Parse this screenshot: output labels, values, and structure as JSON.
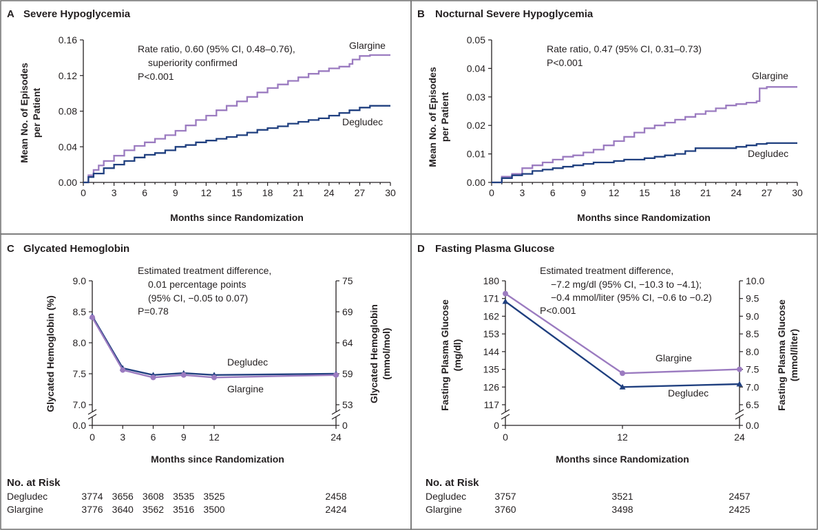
{
  "colors": {
    "degludec": "#1f3f7f",
    "glargine": "#9b7bc0",
    "frame": "#6d6d6d",
    "text": "#231f20"
  },
  "chart_data": [
    {
      "id": "A",
      "type": "line",
      "panel_letter": "A",
      "title": "Severe Hypoglycemia",
      "xlabel": "Months since Randomization",
      "ylabel_lines": [
        "Mean No. of Episodes",
        "per Patient"
      ],
      "xlim": [
        0,
        30
      ],
      "ylim": [
        0,
        0.16
      ],
      "xticks": [
        "0",
        "3",
        "6",
        "9",
        "12",
        "15",
        "18",
        "21",
        "24",
        "27",
        "30"
      ],
      "yticks": [
        "0.00",
        "0.04",
        "0.08",
        "0.12",
        "0.16"
      ],
      "annotation": [
        "Rate ratio, 0.60 (95% CI, 0.48–0.76),",
        "superiority confirmed",
        "P<0.001"
      ],
      "series": [
        {
          "name": "Glargine",
          "color_key": "glargine",
          "step": true,
          "x": [
            0,
            0.5,
            1,
            1.5,
            2,
            3,
            4,
            5,
            6,
            7,
            8,
            9,
            10,
            11,
            12,
            13,
            14,
            15,
            16,
            17,
            18,
            19,
            20,
            21,
            22,
            23,
            24,
            25,
            26,
            26.3,
            27,
            28,
            29,
            30
          ],
          "y": [
            0,
            0.008,
            0.014,
            0.019,
            0.024,
            0.03,
            0.036,
            0.041,
            0.045,
            0.049,
            0.053,
            0.058,
            0.064,
            0.07,
            0.075,
            0.081,
            0.086,
            0.091,
            0.096,
            0.101,
            0.106,
            0.11,
            0.114,
            0.118,
            0.122,
            0.125,
            0.128,
            0.13,
            0.133,
            0.138,
            0.142,
            0.143,
            0.143,
            0.143
          ]
        },
        {
          "name": "Degludec",
          "color_key": "degludec",
          "step": true,
          "x": [
            0,
            0.5,
            1,
            2,
            3,
            4,
            5,
            6,
            7,
            8,
            9,
            10,
            11,
            12,
            13,
            14,
            15,
            16,
            17,
            18,
            19,
            20,
            21,
            22,
            23,
            24,
            25,
            26,
            27,
            28,
            29,
            30
          ],
          "y": [
            0,
            0.006,
            0.01,
            0.016,
            0.02,
            0.024,
            0.028,
            0.031,
            0.033,
            0.036,
            0.04,
            0.042,
            0.045,
            0.047,
            0.049,
            0.051,
            0.053,
            0.056,
            0.059,
            0.061,
            0.063,
            0.066,
            0.068,
            0.07,
            0.072,
            0.075,
            0.078,
            0.081,
            0.084,
            0.086,
            0.086,
            0.086
          ]
        }
      ]
    },
    {
      "id": "B",
      "type": "line",
      "panel_letter": "B",
      "title": "Nocturnal Severe Hypoglycemia",
      "xlabel": "Months since Randomization",
      "ylabel_lines": [
        "Mean No. of Episodes",
        "per Patient"
      ],
      "xlim": [
        0,
        30
      ],
      "ylim": [
        0,
        0.05
      ],
      "xticks": [
        "0",
        "3",
        "6",
        "9",
        "12",
        "15",
        "18",
        "21",
        "24",
        "27",
        "30"
      ],
      "yticks": [
        "0.00",
        "0.01",
        "0.02",
        "0.03",
        "0.04",
        "0.05"
      ],
      "annotation": [
        "Rate ratio, 0.47 (95% CI, 0.31–0.73)",
        "P<0.001"
      ],
      "series": [
        {
          "name": "Glargine",
          "color_key": "glargine",
          "step": true,
          "x": [
            0,
            1,
            2,
            3,
            4,
            5,
            6,
            7,
            8,
            9,
            10,
            11,
            12,
            13,
            14,
            15,
            16,
            17,
            18,
            19,
            20,
            21,
            22,
            23,
            24,
            25,
            26,
            26.3,
            27,
            28,
            29,
            30
          ],
          "y": [
            0,
            0.002,
            0.003,
            0.005,
            0.006,
            0.007,
            0.008,
            0.009,
            0.0095,
            0.0105,
            0.0115,
            0.013,
            0.0145,
            0.016,
            0.0175,
            0.019,
            0.02,
            0.021,
            0.022,
            0.023,
            0.024,
            0.025,
            0.026,
            0.027,
            0.0275,
            0.028,
            0.0285,
            0.033,
            0.0335,
            0.0335,
            0.0335,
            0.0335
          ]
        },
        {
          "name": "Degludec",
          "color_key": "degludec",
          "step": true,
          "x": [
            0,
            1,
            2,
            3,
            4,
            5,
            6,
            7,
            8,
            9,
            10,
            11,
            12,
            13,
            14,
            15,
            16,
            17,
            18,
            19,
            20,
            21,
            22,
            23,
            24,
            25,
            26,
            27,
            28,
            29,
            30
          ],
          "y": [
            0,
            0.0015,
            0.0025,
            0.003,
            0.004,
            0.0045,
            0.005,
            0.0055,
            0.006,
            0.0065,
            0.007,
            0.007,
            0.0075,
            0.008,
            0.008,
            0.0085,
            0.009,
            0.0095,
            0.01,
            0.011,
            0.012,
            0.012,
            0.012,
            0.012,
            0.0125,
            0.013,
            0.0135,
            0.0138,
            0.0138,
            0.0138,
            0.0138
          ]
        }
      ]
    },
    {
      "id": "C",
      "type": "line",
      "panel_letter": "C",
      "title": "Glycated Hemoglobin",
      "xlabel": "Months since Randomization",
      "ylabel_left": "Glycated Hemoglobin (%)",
      "ylabel_right_lines": [
        "Glycated Hemoglobin",
        "(mmol/mol)"
      ],
      "xlim": [
        0,
        24
      ],
      "ylim": [
        7.0,
        9.0
      ],
      "axis_break": true,
      "x_tick_values": [
        0,
        3,
        6,
        9,
        12,
        24
      ],
      "xticks": [
        "0",
        "3",
        "6",
        "9",
        "12",
        "24"
      ],
      "y_tick_values": [
        7.0,
        7.5,
        8.0,
        8.5,
        9.0
      ],
      "yticks": [
        "7.0",
        "7.5",
        "8.0",
        "8.5",
        "9.0"
      ],
      "y_zero_label": "0.0",
      "yticks_right": [
        "53",
        "59",
        "64",
        "69",
        "75"
      ],
      "y_zero_label_right": "0",
      "annotation": [
        "Estimated treatment difference,",
        "0.01 percentage points",
        "(95% CI, −0.05 to 0.07)",
        "P=0.78"
      ],
      "series": [
        {
          "name": "Degludec",
          "color_key": "degludec",
          "marker": "triangle",
          "x": [
            0,
            3,
            6,
            9,
            12,
            24
          ],
          "y": [
            8.43,
            7.59,
            7.48,
            7.51,
            7.48,
            7.5
          ]
        },
        {
          "name": "Glargine",
          "color_key": "glargine",
          "marker": "circle",
          "x": [
            0,
            3,
            6,
            9,
            12,
            24
          ],
          "y": [
            8.41,
            7.56,
            7.44,
            7.48,
            7.44,
            7.48
          ]
        }
      ],
      "risk_table": {
        "title": "No. at Risk",
        "rows": [
          {
            "label": "Degludec",
            "values": [
              "3774",
              "3656",
              "3608",
              "3535",
              "3525",
              "2458"
            ]
          },
          {
            "label": "Glargine",
            "values": [
              "3776",
              "3640",
              "3562",
              "3516",
              "3500",
              "2424"
            ]
          }
        ]
      }
    },
    {
      "id": "D",
      "type": "line",
      "panel_letter": "D",
      "title": "Fasting Plasma Glucose",
      "xlabel": "Months since Randomization",
      "ylabel_left_lines": [
        "Fasting Plasma Glucose",
        "(mg/dl)"
      ],
      "ylabel_right_lines": [
        "Fasting Plasma Glucose",
        "(mmol/liter)"
      ],
      "xlim": [
        0,
        24
      ],
      "ylim": [
        117,
        180
      ],
      "axis_break": true,
      "x_tick_values": [
        0,
        12,
        24
      ],
      "xticks": [
        "0",
        "12",
        "24"
      ],
      "y_tick_values": [
        117,
        126,
        135,
        144,
        153,
        162,
        171,
        180
      ],
      "yticks": [
        "117",
        "126",
        "135",
        "144",
        "153",
        "162",
        "171",
        "180"
      ],
      "y_zero_label": "0",
      "yticks_right": [
        "6.5",
        "7.0",
        "7.5",
        "8.0",
        "8.5",
        "9.0",
        "9.5",
        "10.0"
      ],
      "y_zero_label_right": "0.0",
      "annotation": [
        "Estimated treatment difference,",
        "−7.2 mg/dl (95% CI, −10.3 to −4.1);",
        "−0.4 mmol/liter (95% CI, −0.6 to −0.2)",
        "P<0.001"
      ],
      "series": [
        {
          "name": "Glargine",
          "color_key": "glargine",
          "marker": "circle",
          "x": [
            0,
            12,
            24
          ],
          "y": [
            173.5,
            133,
            135
          ]
        },
        {
          "name": "Degludec",
          "color_key": "degludec",
          "marker": "triangle",
          "x": [
            0,
            12,
            24
          ],
          "y": [
            169.5,
            126,
            127.5
          ]
        }
      ],
      "risk_table": {
        "title": "No. at Risk",
        "rows": [
          {
            "label": "Degludec",
            "values": [
              "3757",
              "3521",
              "2457"
            ]
          },
          {
            "label": "Glargine",
            "values": [
              "3760",
              "3498",
              "2425"
            ]
          }
        ]
      }
    }
  ]
}
